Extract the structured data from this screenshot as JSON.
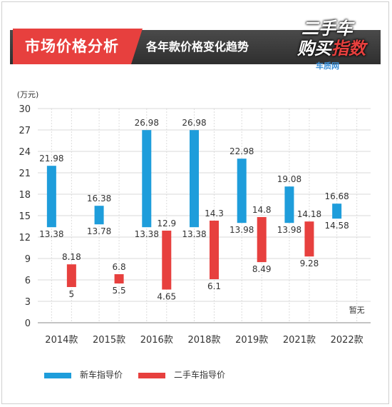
{
  "header": {
    "title": "市场价格分析",
    "subtitle": "各年款价格变化趋势"
  },
  "logo": {
    "line1": "二手车",
    "line2_a": "购买",
    "line2_b": "指数",
    "brand": "车质网"
  },
  "colors": {
    "new_car": "#1e9ddb",
    "used_car": "#e7403e",
    "header_red": "#e7403e",
    "header_dark": "#3a3a3a"
  },
  "chart_data": {
    "type": "bar",
    "ylabel": "(万元)",
    "ylim": [
      0,
      30
    ],
    "yticks": [
      0,
      3,
      6,
      9,
      12,
      15,
      18,
      21,
      24,
      27,
      30
    ],
    "categories": [
      "2014款",
      "2015款",
      "2016款",
      "2018款",
      "2019款",
      "2021款",
      "2022款"
    ],
    "series": [
      {
        "name": "新车指导价",
        "low": [
          13.38,
          13.78,
          13.38,
          13.38,
          13.98,
          13.98,
          14.58
        ],
        "high": [
          21.98,
          16.38,
          26.98,
          26.98,
          22.98,
          19.08,
          16.68
        ]
      },
      {
        "name": "二手车指导价",
        "low": [
          5,
          5.5,
          4.65,
          6.1,
          8.49,
          9.28,
          null
        ],
        "high": [
          8.18,
          6.8,
          12.9,
          14.3,
          14.8,
          14.18,
          null
        ]
      }
    ],
    "annotations": [
      {
        "category": "2022款",
        "text": "暂无"
      }
    ],
    "grid": true,
    "legend_position": "bottom"
  }
}
